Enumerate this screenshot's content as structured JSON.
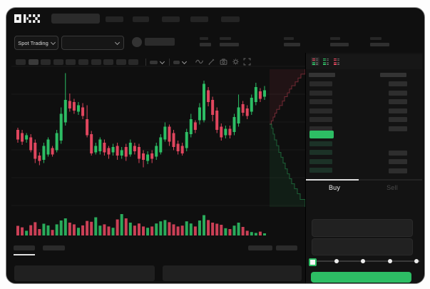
{
  "topbar": {
    "logo": "OKX",
    "search_placeholder": "",
    "nav_placeholder_count": 5
  },
  "market_bar": {
    "market_type_label": "Spot Trading",
    "pair_select_placeholder": "",
    "ticker_stat_count": 5
  },
  "chart_toolbar": {
    "interval_placeholder_count": 10,
    "icons": [
      "indicator-wave-icon",
      "draw-pencil-icon",
      "camera-icon",
      "settings-gear-icon",
      "fullscreen-icon"
    ]
  },
  "order_book": {
    "view_mode_icons": [
      "book-both-icon",
      "book-bids-icon",
      "book-asks-icon"
    ],
    "ask_row_count": 6,
    "bid_row_count": 4,
    "bid_amount_row_count": 3,
    "last_price_direction": "up"
  },
  "trade_panel": {
    "buy_tab": "Buy",
    "sell_tab": "Sell",
    "field_count": 2,
    "amount_slider": {
      "steps": 5,
      "value_index": 0
    },
    "buy_button_label": ""
  },
  "bottom_bar": {
    "tab_placeholder_count": 2,
    "right_placeholder_count": 2,
    "panel_count": 2
  },
  "colors": {
    "background": "#0f0f0f",
    "placeholder_bar": "#2b2b2b",
    "green": "#2dbd64",
    "red": "#e0465e",
    "text_primary": "#ececec",
    "text_muted": "#4a4a4a"
  },
  "chart_data": {
    "type": "candlestick",
    "title": "",
    "axis_tick_labels": "none visible (skeleton UI)",
    "value_scale": [
      0,
      100
    ],
    "grid": true,
    "candles": [
      [
        44,
        46,
        32,
        35
      ],
      [
        41,
        44,
        30,
        33
      ],
      [
        35,
        41,
        32,
        39
      ],
      [
        37,
        40,
        23,
        25
      ],
      [
        32,
        35,
        13,
        17
      ],
      [
        20,
        23,
        11,
        15
      ],
      [
        16,
        32,
        13,
        29
      ],
      [
        21,
        37,
        19,
        35
      ],
      [
        27,
        29,
        19,
        21
      ],
      [
        25,
        44,
        23,
        41
      ],
      [
        34,
        65,
        31,
        59
      ],
      [
        51,
        97,
        48,
        72
      ],
      [
        71,
        78,
        61,
        64
      ],
      [
        70,
        73,
        59,
        62
      ],
      [
        61,
        70,
        58,
        67
      ],
      [
        65,
        69,
        54,
        57
      ],
      [
        54,
        67,
        37,
        39
      ],
      [
        40,
        43,
        20,
        22
      ],
      [
        23,
        32,
        21,
        29
      ],
      [
        24,
        37,
        21,
        35
      ],
      [
        32,
        35,
        20,
        23
      ],
      [
        27,
        29,
        17,
        21
      ],
      [
        23,
        31,
        20,
        28
      ],
      [
        29,
        32,
        16,
        20
      ],
      [
        20,
        28,
        17,
        25
      ],
      [
        28,
        31,
        15,
        19
      ],
      [
        21,
        35,
        19,
        32
      ],
      [
        29,
        32,
        21,
        24
      ],
      [
        28,
        31,
        13,
        17
      ],
      [
        22,
        25,
        9,
        16
      ],
      [
        15,
        24,
        12,
        21
      ],
      [
        22,
        25,
        13,
        17
      ],
      [
        19,
        32,
        16,
        29
      ],
      [
        23,
        40,
        21,
        37
      ],
      [
        35,
        51,
        33,
        47
      ],
      [
        47,
        49,
        29,
        33
      ],
      [
        41,
        44,
        25,
        28
      ],
      [
        31,
        34,
        21,
        24
      ],
      [
        29,
        32,
        20,
        22
      ],
      [
        27,
        45,
        24,
        42
      ],
      [
        40,
        59,
        37,
        54
      ],
      [
        51,
        53,
        41,
        44
      ],
      [
        53,
        69,
        49,
        65
      ],
      [
        53,
        90,
        51,
        87
      ],
      [
        81,
        84,
        66,
        70
      ],
      [
        72,
        75,
        52,
        58
      ],
      [
        62,
        65,
        41,
        44
      ],
      [
        47,
        50,
        34,
        37
      ],
      [
        39,
        48,
        36,
        45
      ],
      [
        45,
        48,
        36,
        39
      ],
      [
        42,
        59,
        39,
        56
      ],
      [
        50,
        77,
        47,
        65
      ],
      [
        68,
        71,
        57,
        60
      ],
      [
        64,
        67,
        54,
        57
      ],
      [
        61,
        77,
        58,
        74
      ],
      [
        70,
        88,
        67,
        84
      ],
      [
        80,
        83,
        70,
        73
      ],
      [
        75,
        85,
        72,
        81
      ]
    ],
    "volume": [
      45,
      38,
      22,
      48,
      62,
      30,
      55,
      47,
      26,
      52,
      70,
      80,
      60,
      52,
      36,
      47,
      68,
      64,
      85,
      46,
      52,
      42,
      36,
      75,
      100,
      80,
      60,
      46,
      56,
      42,
      36,
      42,
      56,
      66,
      72,
      62,
      52,
      42,
      46,
      66,
      56,
      42,
      70,
      95,
      72,
      60,
      55,
      50,
      34,
      30,
      46,
      60,
      40,
      22,
      16,
      12,
      18,
      10
    ],
    "depth": {
      "asks_profile": [
        [
          0,
          0
        ],
        [
          0.05,
          0.06
        ],
        [
          0.1,
          0.13
        ],
        [
          0.15,
          0.2
        ],
        [
          0.2,
          0.27
        ],
        [
          0.28,
          0.34
        ],
        [
          0.36,
          0.42
        ],
        [
          0.42,
          0.5
        ],
        [
          0.5,
          0.57
        ],
        [
          0.56,
          0.64
        ],
        [
          0.62,
          0.7
        ],
        [
          0.72,
          0.77
        ],
        [
          0.8,
          0.84
        ],
        [
          0.88,
          0.91
        ],
        [
          1,
          1
        ]
      ],
      "bids_profile": [
        [
          0,
          0
        ],
        [
          0.06,
          0.05
        ],
        [
          0.1,
          0.12
        ],
        [
          0.14,
          0.19
        ],
        [
          0.2,
          0.26
        ],
        [
          0.26,
          0.34
        ],
        [
          0.32,
          0.4
        ],
        [
          0.38,
          0.47
        ],
        [
          0.44,
          0.54
        ],
        [
          0.5,
          0.6
        ],
        [
          0.56,
          0.66
        ],
        [
          0.62,
          0.72
        ],
        [
          0.7,
          0.78
        ],
        [
          0.78,
          0.84
        ],
        [
          0.86,
          0.91
        ],
        [
          1,
          1
        ]
      ]
    }
  }
}
